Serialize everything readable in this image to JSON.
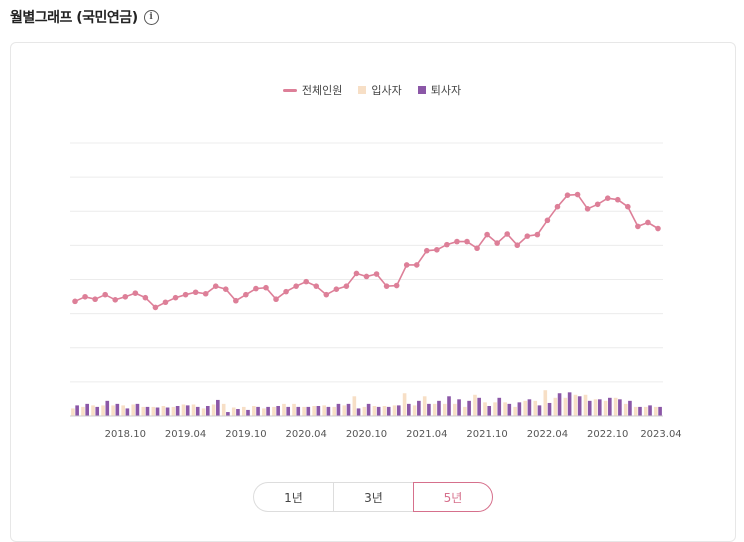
{
  "header": {
    "title": "월별그래프 (국민연금)",
    "info_icon": "info-icon"
  },
  "colors": {
    "line": "#dd7f98",
    "hires": "#f7dfc6",
    "exits": "#8b57a7",
    "active": "#d6708c",
    "grid": "#ececec"
  },
  "range_buttons": [
    {
      "label": "1년",
      "active": false
    },
    {
      "label": "3년",
      "active": false
    },
    {
      "label": "5년",
      "active": true
    }
  ],
  "chart_data": {
    "type": "line+bar",
    "legend": [
      "전체인원",
      "입사자",
      "퇴사자"
    ],
    "legend_position": "top-center",
    "grid": true,
    "y_gridlines": 9,
    "x_ticks": [
      "2018.10",
      "2019.04",
      "2019.10",
      "2020.04",
      "2020.10",
      "2021.04",
      "2021.10",
      "2022.04",
      "2022.10",
      "2023.04"
    ],
    "months": [
      "2018.05",
      "2018.06",
      "2018.07",
      "2018.08",
      "2018.09",
      "2018.10",
      "2018.11",
      "2018.12",
      "2019.01",
      "2019.02",
      "2019.03",
      "2019.04",
      "2019.05",
      "2019.06",
      "2019.07",
      "2019.08",
      "2019.09",
      "2019.10",
      "2019.11",
      "2019.12",
      "2020.01",
      "2020.02",
      "2020.03",
      "2020.04",
      "2020.05",
      "2020.06",
      "2020.07",
      "2020.08",
      "2020.09",
      "2020.10",
      "2020.11",
      "2020.12",
      "2021.01",
      "2021.02",
      "2021.03",
      "2021.04",
      "2021.05",
      "2021.06",
      "2021.07",
      "2021.08",
      "2021.09",
      "2021.10",
      "2021.11",
      "2021.12",
      "2022.01",
      "2022.02",
      "2022.03",
      "2022.04",
      "2022.05",
      "2022.06",
      "2022.07",
      "2022.08",
      "2022.09",
      "2022.10",
      "2022.11",
      "2022.12",
      "2023.01",
      "2023.02",
      "2023.03"
    ],
    "series": [
      {
        "name": "전체인원",
        "type": "line",
        "values": [
          37.8,
          39.3,
          38.5,
          40.0,
          38.3,
          39.3,
          40.5,
          39.0,
          35.8,
          37.5,
          39.0,
          40.0,
          40.8,
          40.3,
          42.8,
          41.8,
          38.0,
          40.0,
          42.0,
          42.3,
          38.5,
          41.0,
          42.8,
          44.3,
          42.8,
          40.0,
          41.8,
          42.8,
          47.0,
          46.0,
          46.8,
          42.8,
          43.0,
          49.8,
          49.8,
          54.5,
          54.8,
          56.5,
          57.5,
          57.5,
          55.3,
          59.8,
          57.0,
          60.0,
          56.3,
          59.3,
          59.8,
          64.5,
          69.0,
          72.8,
          73.0,
          68.3,
          69.8,
          71.8,
          71.3,
          69.0,
          62.5,
          63.8,
          61.8
        ]
      },
      {
        "name": "입사자",
        "type": "bar",
        "values": [
          2.5,
          3.0,
          3.5,
          3.5,
          3.5,
          3.5,
          3.8,
          3.0,
          3.0,
          3.3,
          3.0,
          3.8,
          3.8,
          2.5,
          3.8,
          4.0,
          2.8,
          3.0,
          3.3,
          2.5,
          3.0,
          4.0,
          4.0,
          3.0,
          3.3,
          3.5,
          3.0,
          3.5,
          6.5,
          3.0,
          3.3,
          3.3,
          3.5,
          7.5,
          3.5,
          6.5,
          4.0,
          4.0,
          4.0,
          3.0,
          7.0,
          4.5,
          4.5,
          4.5,
          3.0,
          5.0,
          5.0,
          8.5,
          6.0,
          6.0,
          7.0,
          7.0,
          5.5,
          5.0,
          6.0,
          4.0,
          3.0,
          3.0,
          3.0
        ]
      },
      {
        "name": "퇴사자",
        "type": "bar",
        "values": [
          3.5,
          4.0,
          3.0,
          5.0,
          4.0,
          2.5,
          4.0,
          3.0,
          2.8,
          2.8,
          3.3,
          3.5,
          3.0,
          3.3,
          5.3,
          1.3,
          2.3,
          2.0,
          3.0,
          3.0,
          3.3,
          3.0,
          3.0,
          3.0,
          3.3,
          3.0,
          4.0,
          4.0,
          2.5,
          4.0,
          3.0,
          3.0,
          3.5,
          4.0,
          5.0,
          4.0,
          5.0,
          6.5,
          5.5,
          5.0,
          6.0,
          3.3,
          6.0,
          4.0,
          4.5,
          5.5,
          3.5,
          4.3,
          7.5,
          7.8,
          6.5,
          5.0,
          5.5,
          6.0,
          5.5,
          5.0,
          3.0,
          3.5,
          3.0
        ]
      }
    ],
    "ylim": [
      0,
      90
    ]
  }
}
